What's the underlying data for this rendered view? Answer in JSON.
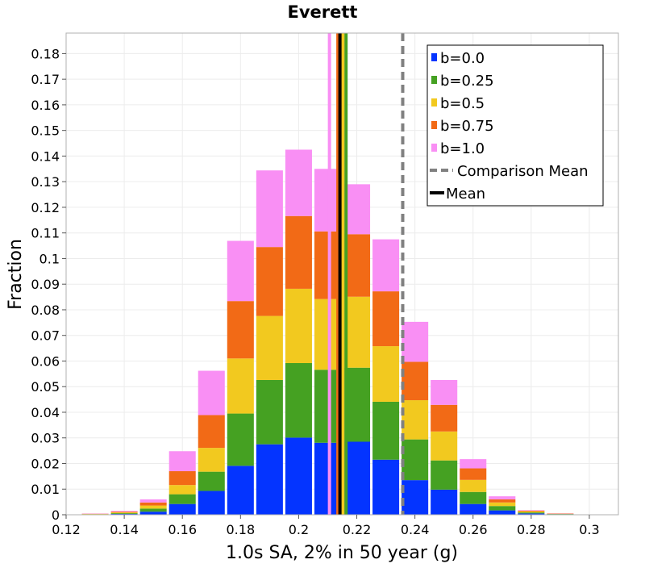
{
  "chart_data": {
    "type": "bar",
    "stacked": true,
    "title": "Everett",
    "xlabel": "1.0s SA, 2% in 50 year (g)",
    "ylabel": "Fraction",
    "xlim": [
      0.12,
      0.31
    ],
    "ylim": [
      0,
      0.188
    ],
    "x_ticks": [
      "0.12",
      "0.14",
      "0.16",
      "0.18",
      "0.2",
      "0.22",
      "0.24",
      "0.26",
      "0.28",
      "0.3"
    ],
    "y_ticks": [
      "0",
      "0.01",
      "0.02",
      "0.03",
      "0.04",
      "0.05",
      "0.06",
      "0.07",
      "0.08",
      "0.09",
      "0.1",
      "0.11",
      "0.12",
      "0.13",
      "0.14",
      "0.15",
      "0.16",
      "0.17",
      "0.18"
    ],
    "grid": true,
    "legend_position": "top-right",
    "bin_centers": [
      0.13,
      0.14,
      0.15,
      0.16,
      0.17,
      0.18,
      0.19,
      0.2,
      0.21,
      0.22,
      0.23,
      0.24,
      0.25,
      0.26,
      0.27,
      0.28,
      0.29,
      0.3
    ],
    "bin_width": 0.01,
    "series": [
      {
        "name": "b=0.0",
        "color": "#0434ff",
        "values": [
          0.0001,
          0.0003,
          0.0012,
          0.0042,
          0.0093,
          0.0191,
          0.0275,
          0.0301,
          0.0281,
          0.0285,
          0.0215,
          0.0135,
          0.0098,
          0.0042,
          0.0017,
          0.0005,
          0.0002,
          0.0001
        ]
      },
      {
        "name": "b=0.25",
        "color": "#45a122",
        "values": [
          0.0001,
          0.0003,
          0.0012,
          0.0038,
          0.0075,
          0.0204,
          0.0251,
          0.0291,
          0.0285,
          0.0289,
          0.0226,
          0.0159,
          0.0114,
          0.0047,
          0.0017,
          0.0004,
          0.0001,
          0.0
        ]
      },
      {
        "name": "b=0.5",
        "color": "#f2c91f",
        "values": [
          0.0001,
          0.0003,
          0.0012,
          0.0036,
          0.0093,
          0.0215,
          0.025,
          0.029,
          0.0276,
          0.0277,
          0.0217,
          0.0153,
          0.0113,
          0.0047,
          0.0014,
          0.0004,
          0.0001,
          0.0
        ]
      },
      {
        "name": "b=0.75",
        "color": "#f26a16",
        "values": [
          0.0001,
          0.0003,
          0.0012,
          0.0054,
          0.0128,
          0.0224,
          0.0269,
          0.0284,
          0.0264,
          0.0244,
          0.0214,
          0.015,
          0.0104,
          0.0045,
          0.0012,
          0.0003,
          0.0001,
          0.0
        ]
      },
      {
        "name": "b=1.0",
        "color": "#f98ff4",
        "values": [
          0.0001,
          0.0003,
          0.0012,
          0.0078,
          0.0173,
          0.0235,
          0.0299,
          0.0259,
          0.0244,
          0.0195,
          0.0203,
          0.0156,
          0.0097,
          0.0036,
          0.0012,
          0.0002,
          0.0001,
          0.0
        ]
      }
    ],
    "series_mean_lines": [
      {
        "name": "b=0.0",
        "color": "#0434ff",
        "x": 0.2152
      },
      {
        "name": "b=0.25",
        "color": "#45a122",
        "x": 0.2163
      },
      {
        "name": "b=0.5",
        "color": "#f2c91f",
        "x": 0.2152
      },
      {
        "name": "b=0.75",
        "color": "#f26a16",
        "x": 0.2135
      },
      {
        "name": "b=1.0",
        "color": "#f98ff4",
        "x": 0.2106
      }
    ],
    "comparison_mean": {
      "name": "Comparison Mean",
      "color": "#808080",
      "x": 0.2358
    },
    "mean": {
      "name": "Mean",
      "color": "#000000",
      "x": 0.2142
    }
  }
}
